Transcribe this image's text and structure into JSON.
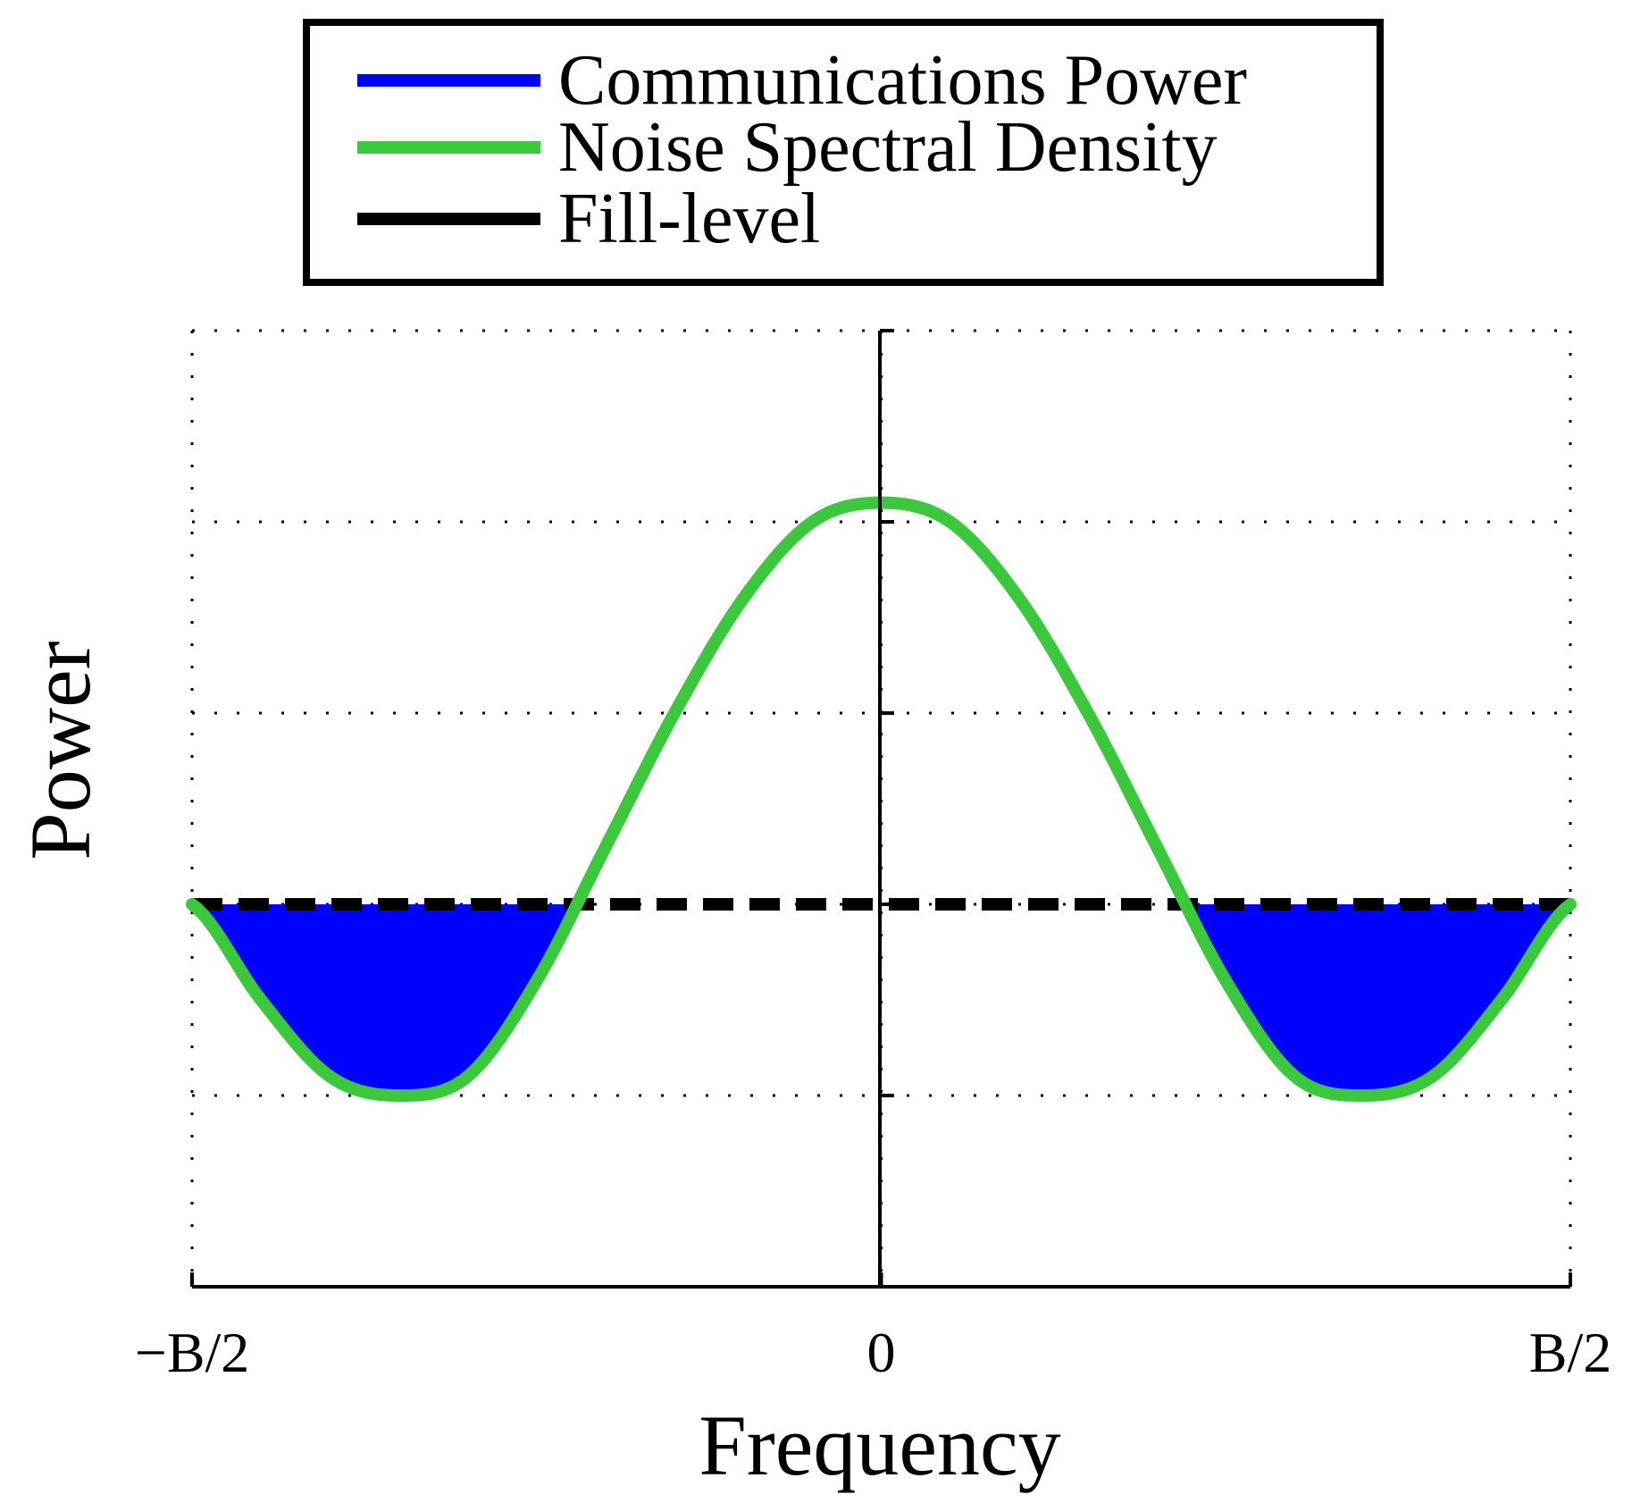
{
  "chart_data": {
    "type": "line",
    "xlabel": "Frequency",
    "ylabel": "Power",
    "x_ticks": [
      "−B/2",
      "0",
      "B/2"
    ],
    "xlim": [
      -1,
      1
    ],
    "ylim": [
      0,
      5
    ],
    "grid": true,
    "legend": {
      "placement": "top-outside",
      "entries": [
        {
          "label": "Communications Power",
          "color": "#0000ff"
        },
        {
          "label": "Noise Spectral Density",
          "color": "#3cc83c"
        },
        {
          "label": "Fill-level",
          "color": "#000000",
          "style": "dashed"
        }
      ]
    },
    "series": [
      {
        "name": "Noise Spectral Density",
        "color": "#3cc83c",
        "x": [
          -1.0,
          -0.9,
          -0.8,
          -0.7,
          -0.6,
          -0.5,
          -0.4,
          -0.3,
          -0.2,
          -0.1,
          0.0,
          0.1,
          0.2,
          0.3,
          0.4,
          0.5,
          0.6,
          0.7,
          0.8,
          0.9,
          1.0
        ],
        "y": [
          2.0,
          1.5,
          1.1,
          1.0,
          1.1,
          1.6,
          2.3,
          3.0,
          3.6,
          4.0,
          4.1,
          4.0,
          3.6,
          3.0,
          2.3,
          1.6,
          1.1,
          1.0,
          1.1,
          1.5,
          2.0
        ]
      },
      {
        "name": "Fill-level",
        "color": "#000000",
        "style": "dashed",
        "y_constant": 2.0
      },
      {
        "name": "Communications Power",
        "color": "#0000ff",
        "fill_between": [
          "Noise Spectral Density",
          "Fill-level"
        ],
        "where": "below fill-level"
      }
    ]
  }
}
